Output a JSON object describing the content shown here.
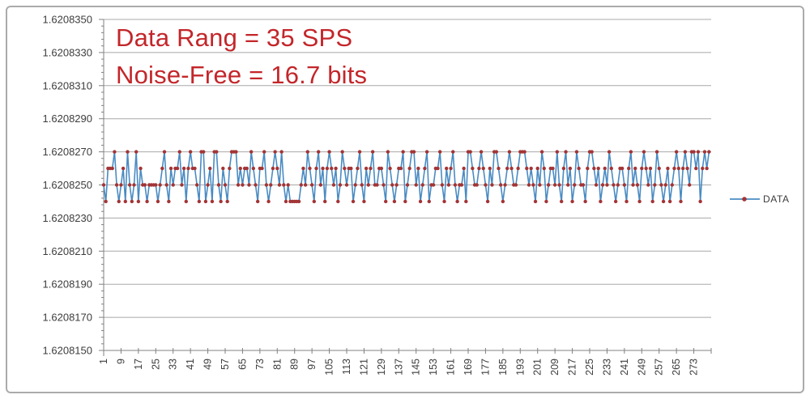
{
  "colors": {
    "line": "#4a8bc2",
    "marker": "#a23537",
    "grid": "#a8a8a8",
    "axis": "#808080",
    "axis_text": "#3d3d3d",
    "annotation": "#c3262a",
    "frame_border": "#ababab",
    "background": "#ffffff"
  },
  "annotations": {
    "line1": "Data Rang = 35 SPS",
    "line2": "Noise-Free = 16.7 bits"
  },
  "legend": {
    "label": "DATA",
    "position": "right"
  },
  "chart_data": {
    "type": "line",
    "title": "",
    "xlabel": "",
    "ylabel": "",
    "grid": "horizontal",
    "marker": "circle",
    "x_start": 1,
    "x_count": 280,
    "x_axis_end": 281,
    "x_tick_step": 8,
    "x_tick_labels": [
      "1",
      "9",
      "17",
      "25",
      "33",
      "41",
      "49",
      "57",
      "65",
      "73",
      "81",
      "89",
      "97",
      "105",
      "113",
      "121",
      "129",
      "137",
      "145",
      "153",
      "161",
      "169",
      "177",
      "185",
      "193",
      "201",
      "209",
      "217",
      "225",
      "233",
      "241",
      "249",
      "257",
      "265",
      "273"
    ],
    "y_tick_labels": [
      "1.6208150",
      "1.6208170",
      "1.6208190",
      "1.6208210",
      "1.6208230",
      "1.6208250",
      "1.6208270",
      "1.6208290",
      "1.6208310",
      "1.6208330",
      "1.6208350"
    ],
    "value_base": 1.6208,
    "value_unit": 1e-07,
    "ylim_units": [
      150,
      350
    ],
    "y_major_step_units": 20,
    "y_minor_step_units": 4,
    "series": [
      {
        "name": "DATA",
        "values_units": [
          250,
          240,
          260,
          260,
          260,
          270,
          250,
          240,
          250,
          260,
          240,
          270,
          250,
          240,
          250,
          270,
          240,
          260,
          250,
          250,
          240,
          250,
          250,
          250,
          250,
          240,
          250,
          260,
          270,
          250,
          240,
          260,
          250,
          260,
          260,
          270,
          250,
          260,
          240,
          260,
          270,
          260,
          260,
          250,
          240,
          270,
          270,
          240,
          250,
          260,
          240,
          270,
          270,
          250,
          240,
          260,
          250,
          240,
          260,
          270,
          270,
          270,
          250,
          260,
          250,
          260,
          260,
          250,
          270,
          260,
          250,
          240,
          260,
          260,
          270,
          250,
          240,
          250,
          260,
          270,
          260,
          250,
          270,
          250,
          240,
          250,
          240,
          240,
          240,
          240,
          240,
          250,
          260,
          250,
          270,
          260,
          250,
          240,
          260,
          270,
          250,
          260,
          240,
          260,
          270,
          260,
          250,
          260,
          240,
          250,
          270,
          260,
          250,
          260,
          260,
          240,
          250,
          260,
          270,
          250,
          240,
          260,
          250,
          260,
          270,
          250,
          250,
          260,
          260,
          250,
          240,
          270,
          260,
          250,
          240,
          250,
          260,
          260,
          270,
          240,
          250,
          260,
          270,
          270,
          250,
          260,
          240,
          250,
          260,
          270,
          240,
          250,
          250,
          260,
          260,
          270,
          250,
          240,
          260,
          250,
          260,
          270,
          250,
          240,
          250,
          250,
          260,
          240,
          270,
          270,
          260,
          250,
          250,
          260,
          270,
          260,
          250,
          240,
          260,
          250,
          270,
          270,
          260,
          250,
          240,
          250,
          260,
          270,
          260,
          250,
          250,
          260,
          270,
          270,
          270,
          260,
          250,
          260,
          250,
          240,
          260,
          250,
          270,
          260,
          240,
          250,
          260,
          260,
          250,
          270,
          250,
          240,
          260,
          270,
          250,
          260,
          240,
          250,
          270,
          260,
          250,
          250,
          240,
          260,
          270,
          270,
          260,
          250,
          260,
          240,
          250,
          260,
          250,
          270,
          260,
          250,
          240,
          250,
          260,
          260,
          250,
          240,
          260,
          270,
          250,
          260,
          250,
          240,
          260,
          270,
          260,
          250,
          260,
          240,
          250,
          270,
          260,
          250,
          240,
          250,
          260,
          240,
          250,
          260,
          270,
          260,
          240,
          260,
          270,
          260,
          250,
          270,
          270,
          260,
          270,
          240,
          260,
          270,
          260,
          270
        ]
      }
    ]
  }
}
